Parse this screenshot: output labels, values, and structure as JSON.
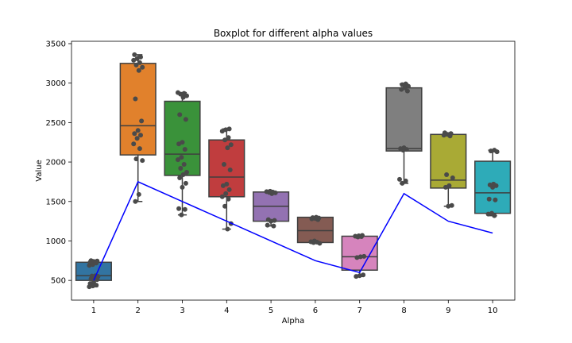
{
  "chart_data": {
    "type": "boxplot",
    "title": "Boxplot for different alpha values",
    "xlabel": "Alpha",
    "ylabel": "Value",
    "categories": [
      "1",
      "2",
      "3",
      "4",
      "5",
      "6",
      "7",
      "8",
      "9",
      "10"
    ],
    "ylim": [
      250,
      3530
    ],
    "yticks": [
      500,
      1000,
      1500,
      2000,
      2500,
      3000,
      3500
    ],
    "grid": false,
    "legend": "none",
    "boxes": [
      {
        "category": "1",
        "whisker_low": 420,
        "q1": 500,
        "median": 560,
        "q3": 730,
        "whisker_high": 750,
        "color": "#3274a1",
        "points": [
          420,
          430,
          440,
          460,
          480,
          510,
          520,
          540,
          550,
          555,
          560,
          690,
          700,
          720,
          730,
          740,
          745,
          750
        ]
      },
      {
        "category": "2",
        "whisker_low": 1500,
        "q1": 2090,
        "median": 2460,
        "q3": 3250,
        "whisker_high": 3360,
        "color": "#e1812c",
        "points": [
          1500,
          1590,
          2020,
          2040,
          2170,
          2230,
          2300,
          2340,
          2360,
          2400,
          2520,
          2800,
          3160,
          3200,
          3230,
          3260,
          3290,
          3310,
          3330,
          3360
        ]
      },
      {
        "category": "3",
        "whisker_low": 1330,
        "q1": 1830,
        "median": 2100,
        "q3": 2770,
        "whisker_high": 2880,
        "color": "#3a923a",
        "points": [
          1330,
          1400,
          1410,
          1680,
          1730,
          1800,
          1840,
          1870,
          1920,
          1970,
          2030,
          2060,
          2160,
          2230,
          2250,
          2540,
          2600,
          2820,
          2840,
          2860,
          2870,
          2880
        ]
      },
      {
        "category": "4",
        "whisker_low": 1150,
        "q1": 1560,
        "median": 1810,
        "q3": 2280,
        "whisker_high": 2420,
        "color": "#c03d3e",
        "points": [
          1150,
          1220,
          1440,
          1530,
          1560,
          1600,
          1650,
          1700,
          1720,
          1900,
          1970,
          2180,
          2220,
          2280,
          2310,
          2390,
          2410,
          2420
        ]
      },
      {
        "category": "5",
        "whisker_low": 1190,
        "q1": 1250,
        "median": 1440,
        "q3": 1620,
        "whisker_high": 1630,
        "color": "#9372b2",
        "points": [
          1190,
          1200,
          1250,
          1260,
          1270,
          1600,
          1610,
          1615,
          1620,
          1625,
          1630
        ]
      },
      {
        "category": "6",
        "whisker_low": 970,
        "q1": 980,
        "median": 1130,
        "q3": 1300,
        "whisker_high": 1300,
        "color": "#845b53",
        "points": [
          970,
          980,
          985,
          990,
          1000,
          1270,
          1280,
          1285,
          1290,
          1295,
          1300
        ]
      },
      {
        "category": "7",
        "whisker_low": 550,
        "q1": 630,
        "median": 800,
        "q3": 1060,
        "whisker_high": 1070,
        "color": "#d684bd",
        "points": [
          550,
          560,
          570,
          790,
          800,
          805,
          1050,
          1055,
          1060,
          1065,
          1070
        ]
      },
      {
        "category": "8",
        "whisker_low": 1730,
        "q1": 2140,
        "median": 2170,
        "q3": 2940,
        "whisker_high": 2990,
        "color": "#7f7f7f",
        "points": [
          1730,
          1760,
          1780,
          2150,
          2160,
          2170,
          2180,
          2900,
          2920,
          2940,
          2960,
          2980,
          2990
        ]
      },
      {
        "category": "9",
        "whisker_low": 1440,
        "q1": 1670,
        "median": 1770,
        "q3": 2350,
        "whisker_high": 2370,
        "color": "#a9aa35",
        "points": [
          1440,
          1450,
          1680,
          1700,
          1800,
          1840,
          2330,
          2340,
          2350,
          2360,
          2370
        ]
      },
      {
        "category": "10",
        "whisker_low": 1320,
        "q1": 1350,
        "median": 1610,
        "q3": 2010,
        "whisker_high": 2150,
        "color": "#2eabb8",
        "points": [
          1320,
          1340,
          1350,
          1520,
          1530,
          1680,
          1700,
          1710,
          1720,
          2130,
          2140,
          2150
        ]
      }
    ],
    "line": {
      "color": "#0000ff",
      "values": [
        500,
        1750,
        1500,
        1250,
        1000,
        750,
        600,
        1600,
        1250,
        1100
      ]
    }
  }
}
